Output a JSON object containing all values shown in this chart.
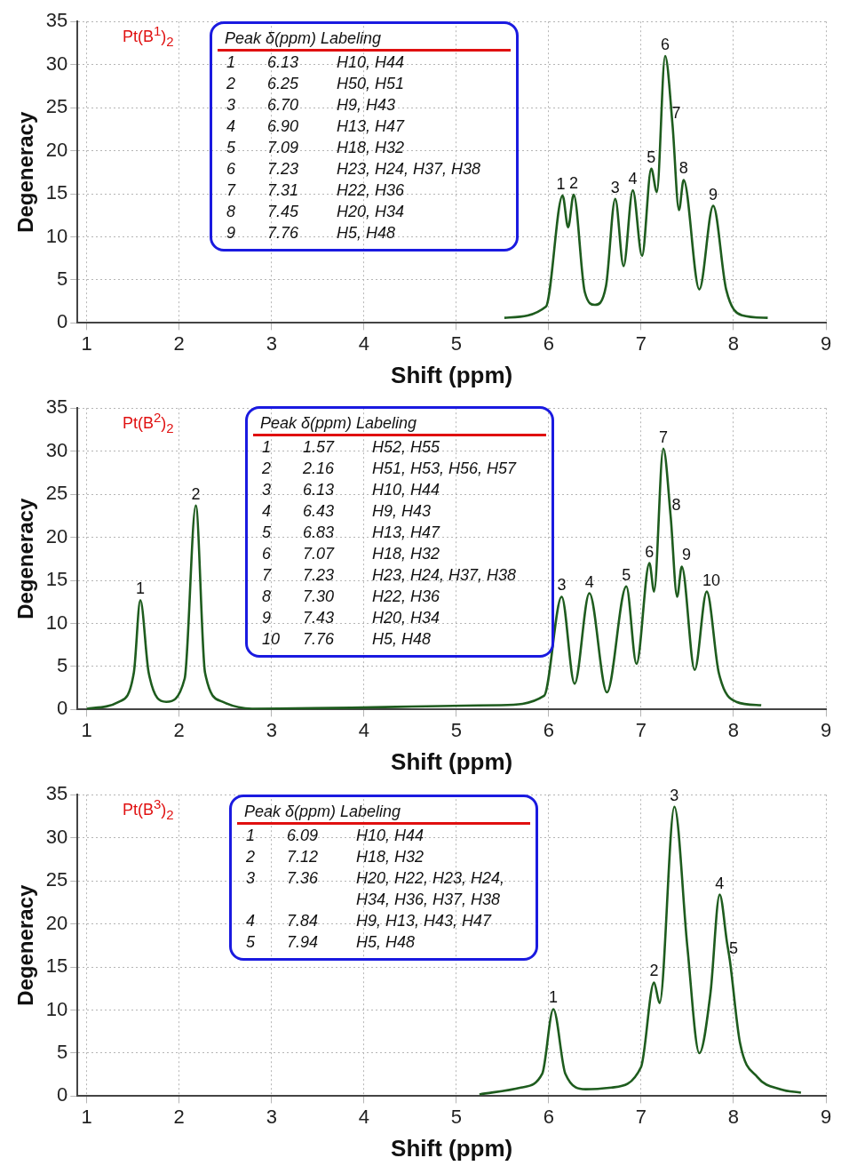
{
  "chart_data": [
    {
      "type": "line",
      "title": "Pt(B$^{1}$)$_{2}$",
      "xlabel": "Shift (ppm)",
      "ylabel": "Degeneracy",
      "xlim": [
        0.9,
        9.0
      ],
      "xticks": [
        1,
        2,
        3,
        4,
        5,
        6,
        7,
        8,
        9
      ],
      "ylim": [
        0,
        35
      ],
      "yticks": [
        0,
        5,
        10,
        15,
        20,
        25,
        30,
        35
      ],
      "grid": true,
      "marker": "none",
      "line_style": "solid",
      "series": [
        {
          "color": "#1e5c1e",
          "x": [
            5.52,
            5.97,
            6.15,
            6.21,
            6.27,
            6.39,
            6.5,
            6.62,
            6.72,
            6.81,
            6.91,
            7.01,
            7.11,
            7.17,
            7.26,
            7.34,
            7.41,
            7.46,
            7.63,
            7.78,
            7.92,
            8.09,
            8.37
          ],
          "values": [
            0.6,
            1.9,
            14.8,
            11.1,
            14.9,
            3.6,
            2.1,
            4.3,
            14.4,
            6.6,
            15.4,
            7.8,
            17.9,
            15.2,
            31.0,
            23.0,
            13.1,
            16.6,
            3.9,
            13.6,
            3.9,
            0.9,
            0.6
          ]
        }
      ],
      "annotations": [
        "Peak\tδ(ppm)\tLabeling",
        "1\t6.13\tH10, H44",
        "2\t6.25\tH50, H51",
        "3\t6.70\tH9, H43",
        "4\t6.90\tH13, H47",
        "5\t7.09\tH18, H32",
        "6\t7.23\tH23, H24, H37, H38",
        "7\t7.31\tH22, H36",
        "8\t7.45\tH20, H34",
        "9\t7.76\tH5, H48",
        {
          "text": "1",
          "x": 6.13,
          "y": 14.8
        },
        {
          "text": "2",
          "x": 6.27,
          "y": 14.9
        },
        {
          "text": "3",
          "x": 6.72,
          "y": 14.4
        },
        {
          "text": "4",
          "x": 6.91,
          "y": 15.4
        },
        {
          "text": "5",
          "x": 7.11,
          "y": 17.9
        },
        {
          "text": "6",
          "x": 7.26,
          "y": 31.0
        },
        {
          "text": "7",
          "x": 7.38,
          "y": 23.0
        },
        {
          "text": "8",
          "x": 7.46,
          "y": 16.6
        },
        {
          "text": "9",
          "x": 7.78,
          "y": 13.6
        }
      ]
    },
    {
      "type": "line",
      "title": "Pt(B$^{2}$)$_{2}$",
      "xlabel": "Shift (ppm)",
      "ylabel": "Degeneracy",
      "xlim": [
        0.9,
        9.0
      ],
      "xticks": [
        1,
        2,
        3,
        4,
        5,
        6,
        7,
        8,
        9
      ],
      "ylim": [
        0,
        35
      ],
      "yticks": [
        0,
        5,
        10,
        15,
        20,
        25,
        30,
        35
      ],
      "grid": true,
      "marker": "none",
      "line_style": "solid",
      "series": [
        {
          "color": "#1e5c1e",
          "x": [
            1.0,
            1.35,
            1.51,
            1.58,
            1.67,
            1.86,
            2.06,
            2.18,
            2.28,
            2.47,
            2.79,
            5.47,
            5.95,
            6.14,
            6.28,
            6.44,
            6.63,
            6.84,
            6.95,
            7.09,
            7.14,
            7.24,
            7.32,
            7.39,
            7.44,
            7.58,
            7.71,
            7.84,
            8.03,
            8.3
          ],
          "values": [
            0.1,
            0.9,
            4.3,
            12.7,
            4.3,
            0.9,
            3.6,
            23.7,
            4.3,
            0.9,
            0.1,
            0.5,
            1.6,
            13.1,
            3.0,
            13.5,
            2.0,
            14.3,
            5.3,
            17.0,
            13.7,
            30.3,
            22.4,
            13.1,
            16.6,
            4.6,
            13.7,
            4.3,
            0.9,
            0.5
          ]
        }
      ],
      "annotations": [
        "Peak\tδ(ppm)\tLabeling",
        "1\t1.57\tH52, H55",
        "2\t2.16\tH51, H53, H56, H57",
        "3\t6.13\tH10, H44",
        "4\t6.43\tH9, H43",
        "5\t6.83\tH13, H47",
        "6\t7.07\tH18, H32",
        "7\t7.23\tH23, H24, H37, H38",
        "8\t7.30\tH22, H36",
        "9\t7.43\tH20, H34",
        "10\t7.76\tH5, H48",
        {
          "text": "1",
          "x": 1.58,
          "y": 12.7
        },
        {
          "text": "2",
          "x": 2.18,
          "y": 23.7
        },
        {
          "text": "3",
          "x": 6.14,
          "y": 13.1
        },
        {
          "text": "4",
          "x": 6.44,
          "y": 13.5
        },
        {
          "text": "5",
          "x": 6.84,
          "y": 14.3
        },
        {
          "text": "6",
          "x": 7.09,
          "y": 17.0
        },
        {
          "text": "7",
          "x": 7.24,
          "y": 30.3
        },
        {
          "text": "8",
          "x": 7.38,
          "y": 22.4
        },
        {
          "text": "9",
          "x": 7.49,
          "y": 16.6
        },
        {
          "text": "10",
          "x": 7.76,
          "y": 13.7
        }
      ]
    },
    {
      "type": "line",
      "title": "Pt(B$^{3}$)$_{2}$",
      "xlabel": "Shift (ppm)",
      "ylabel": "Degeneracy",
      "xlim": [
        0.9,
        9.0
      ],
      "xticks": [
        1,
        2,
        3,
        4,
        5,
        6,
        7,
        8,
        9
      ],
      "ylim": [
        0,
        35
      ],
      "yticks": [
        0,
        5,
        10,
        15,
        20,
        25,
        30,
        35
      ],
      "grid": true,
      "marker": "none",
      "line_style": "solid",
      "series": [
        {
          "color": "#1e5c1e",
          "x": [
            5.25,
            5.7,
            5.93,
            6.05,
            6.18,
            6.4,
            6.68,
            7.0,
            7.14,
            7.2,
            7.36,
            7.5,
            7.63,
            7.75,
            7.85,
            7.93,
            7.96,
            8.07,
            8.26,
            8.51,
            8.73
          ],
          "values": [
            0.2,
            1.0,
            2.6,
            10.1,
            2.6,
            0.8,
            1.0,
            3.4,
            13.2,
            10.8,
            33.6,
            17.4,
            5.0,
            11.9,
            23.4,
            17.8,
            15.8,
            6.2,
            2.2,
            0.8,
            0.4
          ]
        }
      ],
      "annotations": [
        "Peak\tδ(ppm)\tLabeling",
        "1\t6.09\tH10, H44",
        "2\t7.12\tH18, H32",
        "3\t7.36\tH20, H22, H23, H24, H34, H36, H37, H38",
        "4\t7.84\tH9, H13, H43, H47",
        "5\t7.94\tH5, H48",
        {
          "text": "1",
          "x": 6.05,
          "y": 10.1
        },
        {
          "text": "2",
          "x": 7.14,
          "y": 13.2
        },
        {
          "text": "3",
          "x": 7.36,
          "y": 33.6
        },
        {
          "text": "4",
          "x": 7.85,
          "y": 23.4
        },
        {
          "text": "5",
          "x": 8.0,
          "y": 15.8
        }
      ]
    }
  ]
}
